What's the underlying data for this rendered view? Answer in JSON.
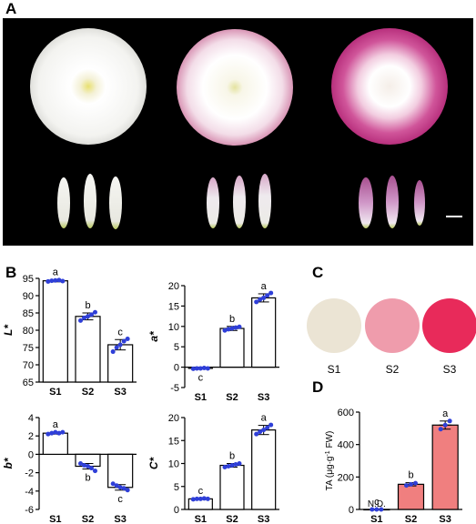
{
  "panels": {
    "a": "A",
    "b": "B",
    "c": "C",
    "d": "D"
  },
  "photo_samples": [
    "S1",
    "S2",
    "S3"
  ],
  "swatches": [
    {
      "label": "S1",
      "color": "#ebe4d4"
    },
    {
      "label": "S2",
      "color": "#ef9cac"
    },
    {
      "label": "S3",
      "color": "#e82a5a"
    }
  ],
  "chart_data": [
    {
      "type": "bar",
      "panel": "B",
      "categories": [
        "S1",
        "S2",
        "S3"
      ],
      "ylabel": "L*",
      "ylim": [
        65,
        95
      ],
      "yticks": [
        65,
        70,
        75,
        80,
        85,
        90,
        95
      ],
      "values": [
        94.3,
        84.0,
        75.8
      ],
      "errors": [
        0.3,
        1.0,
        1.5
      ],
      "points": [
        [
          94.1,
          94.3,
          94.4,
          94.5,
          94.2
        ],
        [
          82.8,
          83.6,
          84.0,
          84.5,
          85.2
        ],
        [
          73.8,
          75.0,
          75.8,
          76.8,
          77.5
        ]
      ],
      "sig": [
        "a",
        "b",
        "c"
      ]
    },
    {
      "type": "bar",
      "panel": "B",
      "categories": [
        "S1",
        "S2",
        "S3"
      ],
      "ylabel": "a*",
      "ylim": [
        -5,
        20
      ],
      "yticks": [
        -5,
        0,
        5,
        10,
        15,
        20
      ],
      "values": [
        -0.3,
        9.5,
        17.0
      ],
      "errors": [
        0.1,
        0.5,
        1.0
      ],
      "points": [
        [
          -0.4,
          -0.3,
          -0.3,
          -0.2,
          -0.3
        ],
        [
          9.0,
          9.3,
          9.5,
          9.7,
          9.9
        ],
        [
          16.0,
          16.6,
          17.0,
          17.6,
          18.2
        ]
      ],
      "sig": [
        "c",
        "b",
        "a"
      ]
    },
    {
      "type": "bar",
      "panel": "B",
      "categories": [
        "S1",
        "S2",
        "S3"
      ],
      "ylabel": "b*",
      "ylim": [
        -6,
        4
      ],
      "yticks": [
        -6,
        -4,
        -2,
        0,
        2,
        4
      ],
      "values": [
        2.3,
        -1.3,
        -3.6
      ],
      "errors": [
        0.1,
        0.3,
        0.3
      ],
      "points": [
        [
          2.2,
          2.3,
          2.4,
          2.3,
          2.4
        ],
        [
          -1.0,
          -1.2,
          -1.3,
          -1.5,
          -1.8
        ],
        [
          -3.2,
          -3.4,
          -3.6,
          -3.7,
          -3.9
        ]
      ],
      "sig": [
        "a",
        "b",
        "c"
      ]
    },
    {
      "type": "bar",
      "panel": "B",
      "categories": [
        "S1",
        "S2",
        "S3"
      ],
      "ylabel": "C*",
      "ylim": [
        0,
        20
      ],
      "yticks": [
        0,
        5,
        10,
        15,
        20
      ],
      "values": [
        2.3,
        9.6,
        17.3
      ],
      "errors": [
        0.1,
        0.4,
        1.0
      ],
      "points": [
        [
          2.2,
          2.3,
          2.3,
          2.4,
          2.3
        ],
        [
          9.2,
          9.4,
          9.6,
          9.8,
          10.0
        ],
        [
          16.4,
          16.9,
          17.3,
          17.8,
          18.4
        ]
      ],
      "sig": [
        "c",
        "b",
        "a"
      ]
    },
    {
      "type": "bar",
      "panel": "D",
      "categories": [
        "S1",
        "S2",
        "S3"
      ],
      "ylabel": "TA (μg·g",
      "ylabel_sup": "-1",
      "ylabel_tail": " FW)",
      "ylim": [
        0,
        600
      ],
      "yticks": [
        0,
        200,
        400,
        600
      ],
      "values": [
        0,
        155,
        520
      ],
      "errors": [
        0,
        10,
        25
      ],
      "points": [
        [
          0,
          0,
          0
        ],
        [
          148,
          155,
          162
        ],
        [
          495,
          520,
          545
        ]
      ],
      "sig": [
        "c",
        "b",
        "a"
      ],
      "annotations": [
        "N.D."
      ],
      "bar_color": "#f07f7f"
    }
  ]
}
